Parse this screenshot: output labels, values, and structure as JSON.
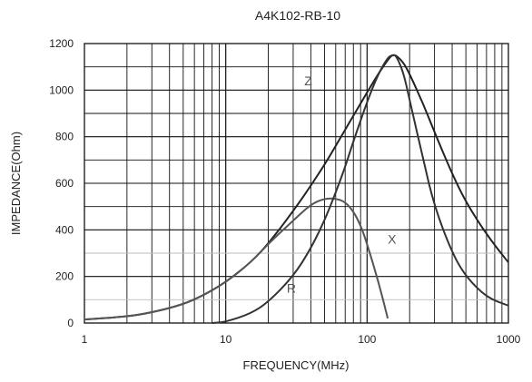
{
  "chart_data": {
    "type": "line",
    "title": "A4K102-RB-10",
    "xlabel": "FREQUENCY(MHz)",
    "ylabel": "IMPEDANCE(Ohm)",
    "x_scale": "log",
    "xlim": [
      1,
      1000
    ],
    "ylim": [
      0,
      1200
    ],
    "grid": true,
    "x_ticks": [
      1,
      10,
      100,
      1000
    ],
    "x_tick_labels": [
      "1",
      "10",
      "100",
      "1000"
    ],
    "y_ticks": [
      0,
      200,
      400,
      600,
      800,
      1000,
      1200
    ],
    "y_tick_labels": [
      "0",
      "200",
      "400",
      "600",
      "800",
      "1000",
      "1200"
    ],
    "series": [
      {
        "name": "Z",
        "color": "#222222",
        "x": [
          1,
          2,
          3,
          5,
          7,
          10,
          15,
          20,
          30,
          40,
          50,
          60,
          70,
          80,
          100,
          120,
          140,
          150,
          160,
          180,
          200,
          250,
          300,
          400,
          500,
          700,
          1000
        ],
        "y": [
          15,
          28,
          45,
          80,
          120,
          175,
          260,
          340,
          480,
          590,
          680,
          760,
          830,
          890,
          990,
          1070,
          1130,
          1150,
          1150,
          1120,
          1070,
          940,
          820,
          640,
          520,
          380,
          260
        ]
      },
      {
        "name": "X",
        "color": "#555555",
        "x": [
          1,
          2,
          3,
          5,
          7,
          10,
          15,
          20,
          30,
          40,
          50,
          60,
          70,
          80,
          90,
          100,
          120,
          140
        ],
        "y": [
          15,
          28,
          45,
          80,
          120,
          175,
          260,
          340,
          440,
          510,
          535,
          535,
          520,
          480,
          420,
          340,
          180,
          20
        ]
      },
      {
        "name": "R",
        "color": "#333333",
        "x": [
          8,
          10,
          15,
          20,
          30,
          40,
          50,
          60,
          70,
          80,
          100,
          120,
          140,
          150,
          160,
          180,
          200,
          250,
          300,
          400,
          500,
          700,
          1000
        ],
        "y": [
          0,
          5,
          40,
          90,
          200,
          320,
          440,
          560,
          670,
          780,
          950,
          1070,
          1140,
          1150,
          1150,
          1080,
          960,
          700,
          500,
          300,
          200,
          110,
          75
        ]
      }
    ]
  }
}
